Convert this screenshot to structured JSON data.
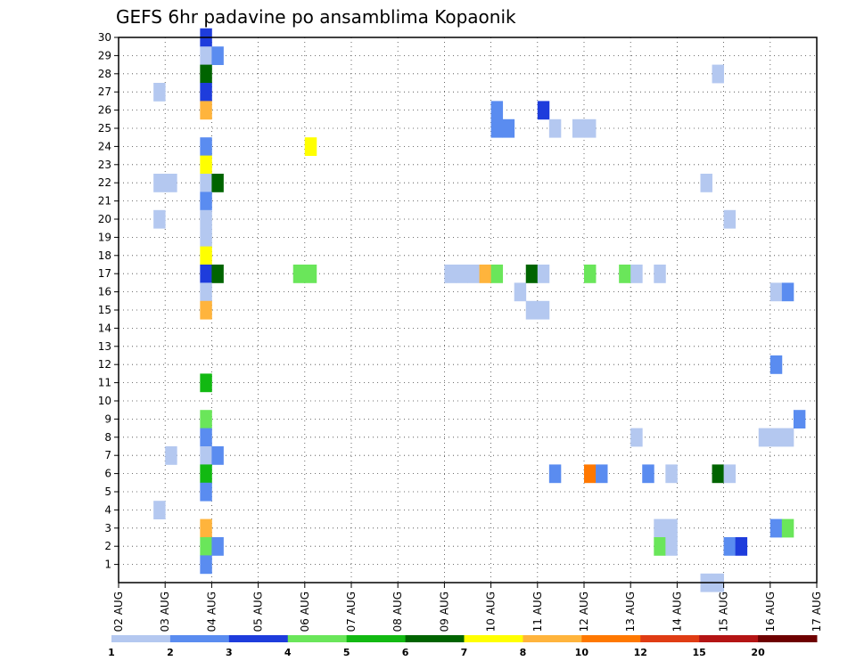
{
  "chart_data": {
    "type": "heatmap",
    "title": "GEFS 6hr padavine po ansamblima Kopaonik",
    "y_ticks": [
      "1",
      "2",
      "3",
      "4",
      "5",
      "6",
      "7",
      "8",
      "9",
      "10",
      "11",
      "12",
      "13",
      "14",
      "15",
      "16",
      "17",
      "18",
      "19",
      "20",
      "21",
      "22",
      "23",
      "24",
      "25",
      "26",
      "27",
      "28",
      "29",
      "30"
    ],
    "x_ticks": [
      "02 AUG",
      "03 AUG",
      "04 AUG",
      "05 AUG",
      "06 AUG",
      "07 AUG",
      "08 AUG",
      "09 AUG",
      "10 AUG",
      "11 AUG",
      "12 AUG",
      "13 AUG",
      "14 AUG",
      "15 AUG",
      "16 AUG",
      "17 AUG"
    ],
    "x_range": [
      0,
      15
    ],
    "y_range": [
      0,
      30
    ],
    "grid": true,
    "color_levels": [
      "1",
      "2",
      "3",
      "4",
      "5",
      "6",
      "7",
      "8",
      "10",
      "12",
      "15",
      "20"
    ],
    "colors": [
      "#b4c8f0",
      "#5a8cf0",
      "#1e3cdc",
      "#6ae65a",
      "#12b912",
      "#006400",
      "#ffff00",
      "#ffb43c",
      "#ff7800",
      "#e03c14",
      "#b41414",
      "#6e0000"
    ],
    "cells_note": "",
    "cells": [
      [
        1.75,
        30,
        2
      ],
      [
        1.75,
        29,
        0
      ],
      [
        2.0,
        29,
        1
      ],
      [
        1.75,
        28,
        5
      ],
      [
        1.75,
        27,
        2
      ],
      [
        1.75,
        26,
        7
      ],
      [
        1.75,
        24,
        1
      ],
      [
        1.75,
        23,
        6
      ],
      [
        1.75,
        22,
        0
      ],
      [
        2.0,
        22,
        5
      ],
      [
        1.75,
        21,
        1
      ],
      [
        1.75,
        20,
        0
      ],
      [
        1.75,
        19,
        0
      ],
      [
        1.75,
        18,
        6
      ],
      [
        1.75,
        17,
        2
      ],
      [
        2.0,
        17,
        5
      ],
      [
        1.75,
        16,
        0
      ],
      [
        1.75,
        15,
        7
      ],
      [
        1.75,
        11,
        4
      ],
      [
        1.75,
        9,
        3
      ],
      [
        1.75,
        8,
        1
      ],
      [
        1.75,
        7,
        0
      ],
      [
        2.0,
        7,
        1
      ],
      [
        1.75,
        6,
        4
      ],
      [
        1.75,
        5,
        1
      ],
      [
        1.75,
        3,
        7
      ],
      [
        1.75,
        2,
        3
      ],
      [
        2.0,
        2,
        1
      ],
      [
        1.75,
        1,
        1
      ],
      [
        0.75,
        27,
        0
      ],
      [
        0.75,
        22,
        0
      ],
      [
        1.0,
        22,
        0
      ],
      [
        0.75,
        20,
        0
      ],
      [
        0.75,
        4,
        0
      ],
      [
        1.0,
        7,
        0
      ],
      [
        4.0,
        24,
        6
      ],
      [
        3.75,
        17,
        3
      ],
      [
        4.0,
        17,
        3
      ],
      [
        7.0,
        17,
        0
      ],
      [
        7.25,
        17,
        0
      ],
      [
        7.5,
        17,
        0
      ],
      [
        7.75,
        17,
        7
      ],
      [
        8.0,
        17,
        3
      ],
      [
        8.0,
        26,
        1
      ],
      [
        8.0,
        25,
        1
      ],
      [
        8.25,
        25,
        1
      ],
      [
        8.5,
        16,
        0
      ],
      [
        8.75,
        17,
        5
      ],
      [
        9.0,
        17,
        0
      ],
      [
        8.75,
        15,
        0
      ],
      [
        9.0,
        15,
        0
      ],
      [
        9.0,
        26,
        2
      ],
      [
        9.25,
        25,
        0
      ],
      [
        9.75,
        25,
        0
      ],
      [
        10.0,
        25,
        0
      ],
      [
        10.0,
        17,
        3
      ],
      [
        10.75,
        17,
        3
      ],
      [
        11.0,
        17,
        0
      ],
      [
        11.5,
        17,
        0
      ],
      [
        9.25,
        6,
        1
      ],
      [
        10.0,
        6,
        8
      ],
      [
        10.25,
        6,
        1
      ],
      [
        11.0,
        8,
        0
      ],
      [
        11.25,
        6,
        1
      ],
      [
        11.75,
        6,
        0
      ],
      [
        11.5,
        3,
        0
      ],
      [
        11.75,
        3,
        0
      ],
      [
        11.5,
        2,
        3
      ],
      [
        11.75,
        2,
        0
      ],
      [
        12.75,
        28,
        0
      ],
      [
        12.5,
        22,
        0
      ],
      [
        13.0,
        20,
        0
      ],
      [
        12.5,
        0,
        0
      ],
      [
        12.75,
        0,
        0
      ],
      [
        12.75,
        6,
        5
      ],
      [
        13.0,
        6,
        0
      ],
      [
        13.0,
        2,
        1
      ],
      [
        13.25,
        2,
        2
      ],
      [
        14.0,
        16,
        0
      ],
      [
        14.25,
        16,
        1
      ],
      [
        14.0,
        12,
        1
      ],
      [
        13.75,
        8,
        0
      ],
      [
        14.0,
        8,
        0
      ],
      [
        14.25,
        8,
        0
      ],
      [
        14.0,
        3,
        1
      ],
      [
        14.25,
        3,
        3
      ],
      [
        14.5,
        9,
        1
      ]
    ]
  }
}
